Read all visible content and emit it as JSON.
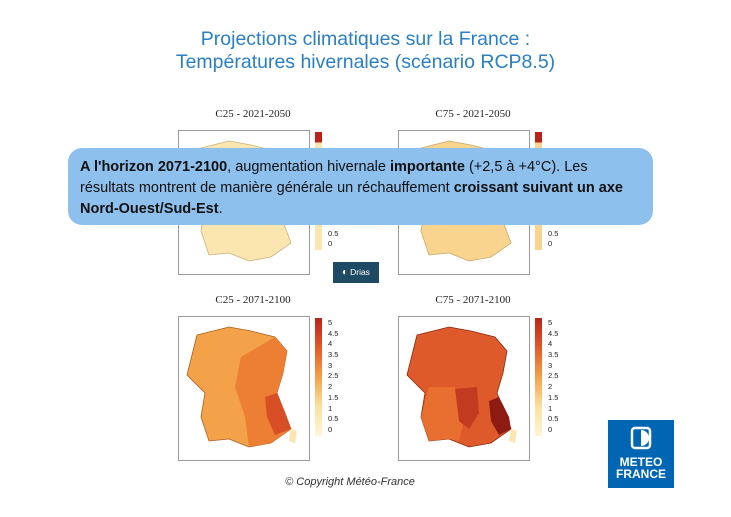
{
  "title": {
    "line1": "Projections climatiques sur la France :",
    "line2": "Températures hivernales (scénario RCP8.5)"
  },
  "maps": [
    {
      "label": "C25 - 2021-2050"
    },
    {
      "label": "C75 - 2021-2050"
    },
    {
      "label": "C25 - 2071-2100"
    },
    {
      "label": "C75 - 2071-2100"
    }
  ],
  "legend_ticks_full": [
    "5",
    "4.5",
    "4",
    "3.5",
    "3",
    "2.5",
    "2",
    "1.5",
    "1",
    "0.5",
    "0"
  ],
  "legend_ticks_partial": [
    "1",
    "0.5",
    "0"
  ],
  "callout": {
    "t1": "A l'horizon 2071-2100",
    "t2": ", augmentation hivernale ",
    "t3": "importante",
    "t4": " (+2,5 à +4°C). Les résultats montrent de manière générale un réchauffement ",
    "t5": "croissant suivant un axe Nord-Ouest/Sud-Est",
    "t6": "."
  },
  "drias_logo_text": "Drias",
  "copyright": "© Copyright Météo-France",
  "meteo_logo": {
    "line1": "METEO",
    "line2": "FRANCE"
  },
  "colors": {
    "title": "#2a7fc4",
    "callout_bg": "#8ec0ee",
    "warming_low": "#fbe0a0",
    "warming_mid": "#f08a3c",
    "warming_high": "#b8241c",
    "meteo_blue": "#0066b3"
  }
}
